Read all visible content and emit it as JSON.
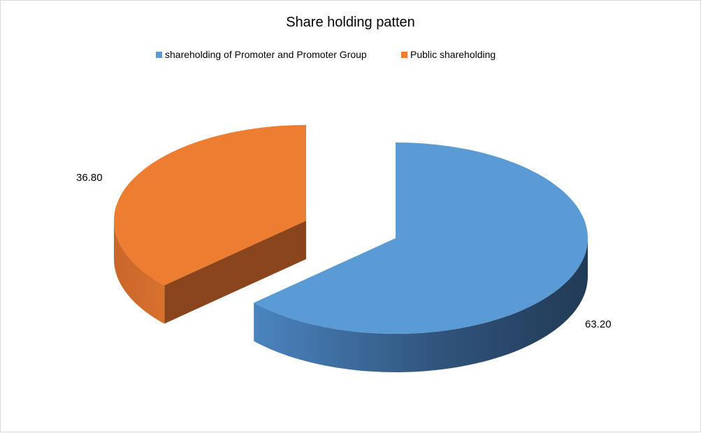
{
  "chart_data": {
    "type": "pie",
    "style": "3d-exploded",
    "title": "Share holding patten",
    "legend_position": "top",
    "slices": [
      {
        "name": "shareholding of Promoter and Promoter Group",
        "value": 63.2,
        "label": "63.20",
        "color": "#5b9bd5"
      },
      {
        "name": "Public shareholding",
        "value": 36.8,
        "label": "36.80",
        "color": "#ed7d31"
      }
    ]
  }
}
